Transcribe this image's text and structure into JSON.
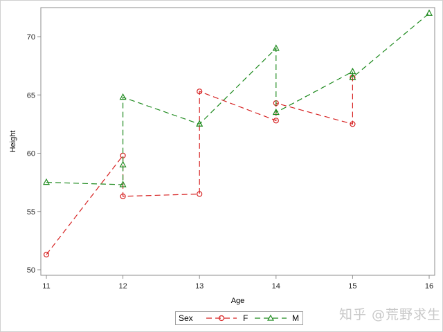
{
  "chart_data": {
    "type": "line",
    "title": "",
    "xlabel": "Age",
    "ylabel": "Height",
    "xlim": [
      11,
      16
    ],
    "ylim": [
      50,
      72
    ],
    "x_ticks": [
      11,
      12,
      13,
      14,
      15,
      16
    ],
    "y_ticks": [
      50,
      55,
      60,
      65,
      70
    ],
    "grid": false,
    "legend_position": "bottom",
    "legend_title": "Sex",
    "series": [
      {
        "name": "F",
        "color": "#d62020",
        "marker": "circle",
        "line_style": "dashed",
        "points": [
          [
            11,
            51.3
          ],
          [
            12,
            59.8
          ],
          [
            12,
            56.3
          ],
          [
            13,
            56.5
          ],
          [
            13,
            65.3
          ],
          [
            14,
            62.8
          ],
          [
            14,
            64.3
          ],
          [
            15,
            62.5
          ],
          [
            15,
            66.5
          ]
        ]
      },
      {
        "name": "M",
        "color": "#1e8a1e",
        "marker": "triangle",
        "line_style": "dashed",
        "points": [
          [
            11,
            57.5
          ],
          [
            12,
            57.3
          ],
          [
            12,
            59.0
          ],
          [
            12,
            64.8
          ],
          [
            13,
            62.5
          ],
          [
            13,
            62.5
          ],
          [
            14,
            69.0
          ],
          [
            14,
            63.5
          ],
          [
            15,
            67.0
          ],
          [
            15,
            66.5
          ],
          [
            16,
            72.0
          ]
        ]
      }
    ]
  },
  "legend": {
    "title": "Sex",
    "items": [
      {
        "label": "F"
      },
      {
        "label": "M"
      }
    ]
  },
  "watermark": "知乎 @荒野求生"
}
